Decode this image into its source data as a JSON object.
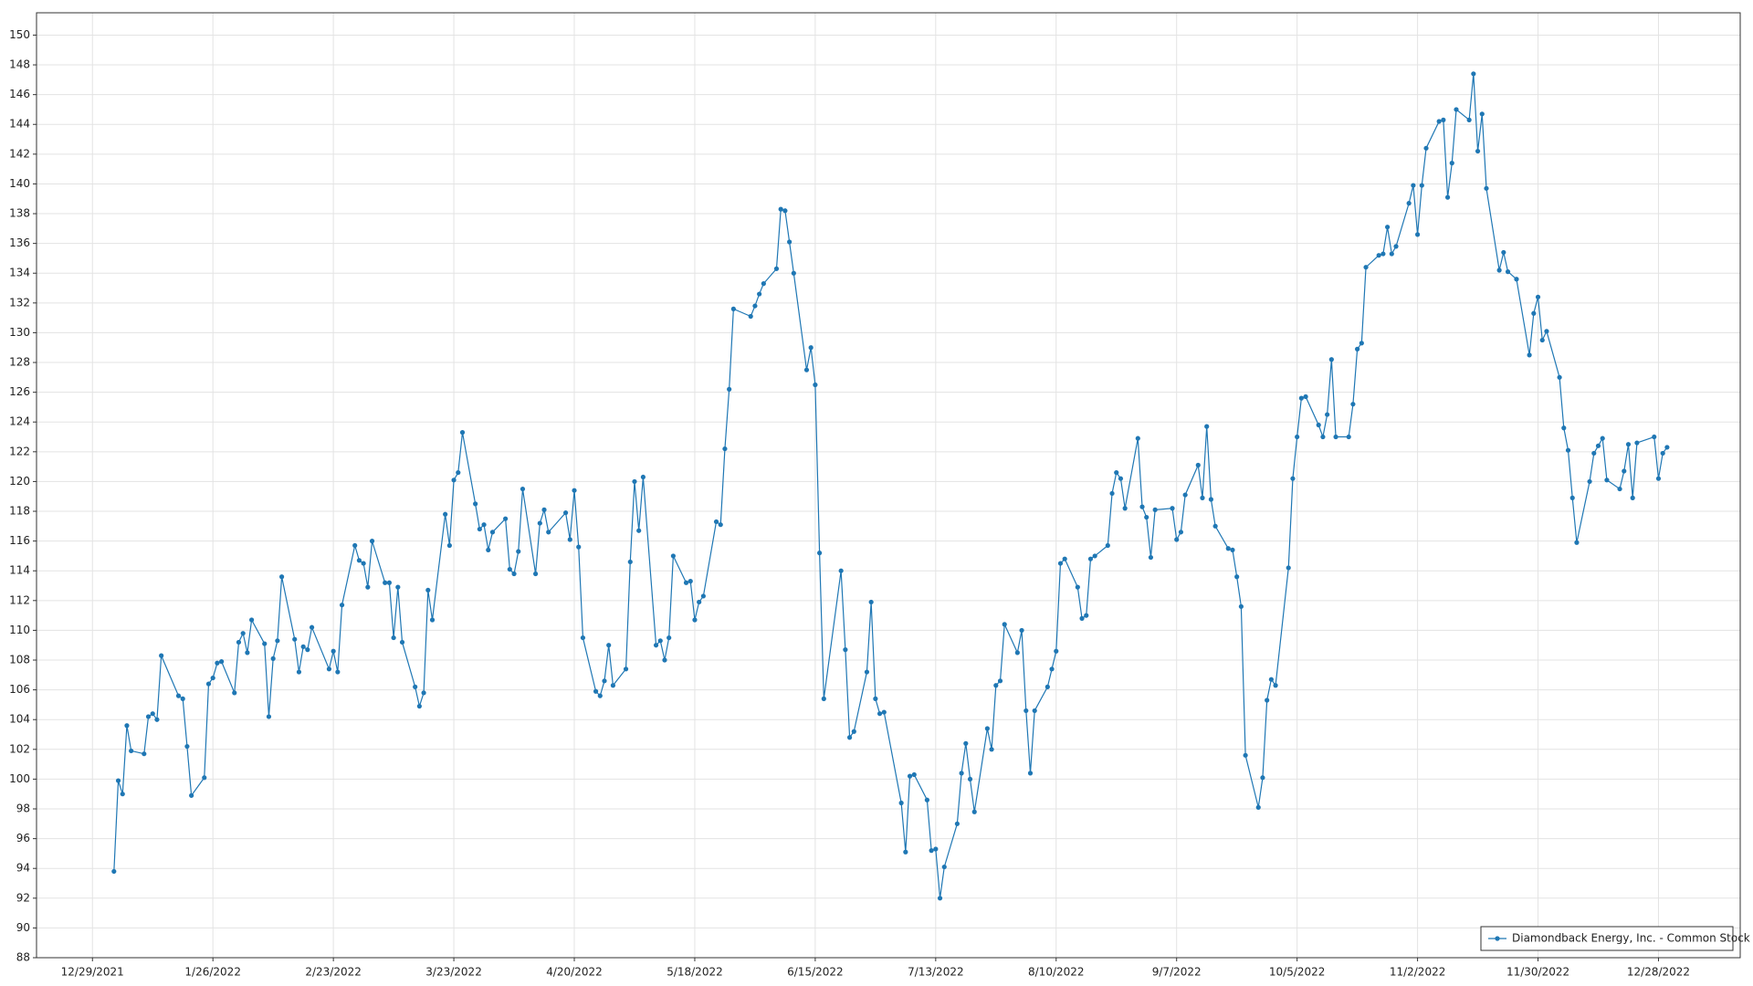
{
  "chart_data": {
    "type": "line",
    "grid": true,
    "markers": true,
    "legend": "lower right",
    "x": [
      "1/3/2022",
      "1/4/2022",
      "1/5/2022",
      "1/6/2022",
      "1/7/2022",
      "1/10/2022",
      "1/11/2022",
      "1/12/2022",
      "1/13/2022",
      "1/14/2022",
      "1/18/2022",
      "1/19/2022",
      "1/20/2022",
      "1/21/2022",
      "1/24/2022",
      "1/25/2022",
      "1/26/2022",
      "1/27/2022",
      "1/28/2022",
      "1/31/2022",
      "2/1/2022",
      "2/2/2022",
      "2/3/2022",
      "2/4/2022",
      "2/7/2022",
      "2/8/2022",
      "2/9/2022",
      "2/10/2022",
      "2/11/2022",
      "2/14/2022",
      "2/15/2022",
      "2/16/2022",
      "2/17/2022",
      "2/18/2022",
      "2/22/2022",
      "2/23/2022",
      "2/24/2022",
      "2/25/2022",
      "2/28/2022",
      "3/1/2022",
      "3/2/2022",
      "3/3/2022",
      "3/4/2022",
      "3/7/2022",
      "3/8/2022",
      "3/9/2022",
      "3/10/2022",
      "3/11/2022",
      "3/14/2022",
      "3/15/2022",
      "3/16/2022",
      "3/17/2022",
      "3/18/2022",
      "3/21/2022",
      "3/22/2022",
      "3/23/2022",
      "3/24/2022",
      "3/25/2022",
      "3/28/2022",
      "3/29/2022",
      "3/30/2022",
      "3/31/2022",
      "4/1/2022",
      "4/4/2022",
      "4/5/2022",
      "4/6/2022",
      "4/7/2022",
      "4/8/2022",
      "4/11/2022",
      "4/12/2022",
      "4/13/2022",
      "4/14/2022",
      "4/18/2022",
      "4/19/2022",
      "4/20/2022",
      "4/21/2022",
      "4/22/2022",
      "4/25/2022",
      "4/26/2022",
      "4/27/2022",
      "4/28/2022",
      "4/29/2022",
      "5/2/2022",
      "5/3/2022",
      "5/4/2022",
      "5/5/2022",
      "5/6/2022",
      "5/9/2022",
      "5/10/2022",
      "5/11/2022",
      "5/12/2022",
      "5/13/2022",
      "5/16/2022",
      "5/17/2022",
      "5/18/2022",
      "5/19/2022",
      "5/20/2022",
      "5/23/2022",
      "5/24/2022",
      "5/25/2022",
      "5/26/2022",
      "5/27/2022",
      "5/31/2022",
      "6/1/2022",
      "6/2/2022",
      "6/3/2022",
      "6/6/2022",
      "6/7/2022",
      "6/8/2022",
      "6/9/2022",
      "6/10/2022",
      "6/13/2022",
      "6/14/2022",
      "6/15/2022",
      "6/16/2022",
      "6/17/2022",
      "6/21/2022",
      "6/22/2022",
      "6/23/2022",
      "6/24/2022",
      "6/27/2022",
      "6/28/2022",
      "6/29/2022",
      "6/30/2022",
      "7/1/2022",
      "7/5/2022",
      "7/6/2022",
      "7/7/2022",
      "7/8/2022",
      "7/11/2022",
      "7/12/2022",
      "7/13/2022",
      "7/14/2022",
      "7/15/2022",
      "7/18/2022",
      "7/19/2022",
      "7/20/2022",
      "7/21/2022",
      "7/22/2022",
      "7/25/2022",
      "7/26/2022",
      "7/27/2022",
      "7/28/2022",
      "7/29/2022",
      "8/1/2022",
      "8/2/2022",
      "8/3/2022",
      "8/4/2022",
      "8/5/2022",
      "8/8/2022",
      "8/9/2022",
      "8/10/2022",
      "8/11/2022",
      "8/12/2022",
      "8/15/2022",
      "8/16/2022",
      "8/17/2022",
      "8/18/2022",
      "8/19/2022",
      "8/22/2022",
      "8/23/2022",
      "8/24/2022",
      "8/25/2022",
      "8/26/2022",
      "8/29/2022",
      "8/30/2022",
      "8/31/2022",
      "9/1/2022",
      "9/2/2022",
      "9/6/2022",
      "9/7/2022",
      "9/8/2022",
      "9/9/2022",
      "9/12/2022",
      "9/13/2022",
      "9/14/2022",
      "9/15/2022",
      "9/16/2022",
      "9/19/2022",
      "9/20/2022",
      "9/21/2022",
      "9/22/2022",
      "9/23/2022",
      "9/26/2022",
      "9/27/2022",
      "9/28/2022",
      "9/29/2022",
      "9/30/2022",
      "10/3/2022",
      "10/4/2022",
      "10/5/2022",
      "10/6/2022",
      "10/7/2022",
      "10/10/2022",
      "10/11/2022",
      "10/12/2022",
      "10/13/2022",
      "10/14/2022",
      "10/17/2022",
      "10/18/2022",
      "10/19/2022",
      "10/20/2022",
      "10/21/2022",
      "10/24/2022",
      "10/25/2022",
      "10/26/2022",
      "10/27/2022",
      "10/28/2022",
      "10/31/2022",
      "11/1/2022",
      "11/2/2022",
      "11/3/2022",
      "11/4/2022",
      "11/7/2022",
      "11/8/2022",
      "11/9/2022",
      "11/10/2022",
      "11/11/2022",
      "11/14/2022",
      "11/15/2022",
      "11/16/2022",
      "11/17/2022",
      "11/18/2022",
      "11/21/2022",
      "11/22/2022",
      "11/23/2022",
      "11/25/2022",
      "11/28/2022",
      "11/29/2022",
      "11/30/2022",
      "12/1/2022",
      "12/2/2022",
      "12/5/2022",
      "12/6/2022",
      "12/7/2022",
      "12/8/2022",
      "12/9/2022",
      "12/12/2022",
      "12/13/2022",
      "12/14/2022",
      "12/15/2022",
      "12/16/2022",
      "12/19/2022",
      "12/20/2022",
      "12/21/2022",
      "12/22/2022",
      "12/23/2022",
      "12/27/2022",
      "12/28/2022",
      "12/29/2022",
      "12/30/2022"
    ],
    "series": [
      {
        "name": "Diamondback Energy, Inc. - Common Stock",
        "color": "#1f77b4",
        "values": [
          93.8,
          99.9,
          99.0,
          103.6,
          101.9,
          101.7,
          104.2,
          104.4,
          104.0,
          108.3,
          105.6,
          105.4,
          102.2,
          98.9,
          100.1,
          106.4,
          106.8,
          107.8,
          107.9,
          105.8,
          109.2,
          109.8,
          108.5,
          110.7,
          109.1,
          104.2,
          108.1,
          109.3,
          113.6,
          109.4,
          107.2,
          108.9,
          108.7,
          110.2,
          107.4,
          108.6,
          107.2,
          111.7,
          115.7,
          114.7,
          114.5,
          112.9,
          116.0,
          113.2,
          113.2,
          109.5,
          112.9,
          109.2,
          106.2,
          104.9,
          105.8,
          112.7,
          110.7,
          117.8,
          115.7,
          120.1,
          120.6,
          123.3,
          118.5,
          116.8,
          117.1,
          115.4,
          116.6,
          117.5,
          114.1,
          113.8,
          115.3,
          119.5,
          113.8,
          117.2,
          118.1,
          116.6,
          117.9,
          116.1,
          119.4,
          115.6,
          109.5,
          105.9,
          105.6,
          106.6,
          109.0,
          106.3,
          107.4,
          114.6,
          120.0,
          116.7,
          120.3,
          109.0,
          109.3,
          108.0,
          109.5,
          115.0,
          113.2,
          113.3,
          110.7,
          111.9,
          112.3,
          117.3,
          117.1,
          122.2,
          126.2,
          131.6,
          131.1,
          131.8,
          132.6,
          133.3,
          134.3,
          138.3,
          138.2,
          136.1,
          134.0,
          127.5,
          129.0,
          126.5,
          115.2,
          105.4,
          114.0,
          108.7,
          102.8,
          103.2,
          107.2,
          111.9,
          105.4,
          104.4,
          104.5,
          98.4,
          95.1,
          100.2,
          100.3,
          98.6,
          95.2,
          95.3,
          92.0,
          94.1,
          97.0,
          100.4,
          102.4,
          100.0,
          97.8,
          103.4,
          102.0,
          106.3,
          106.6,
          110.4,
          108.5,
          110.0,
          104.6,
          100.4,
          104.6,
          106.2,
          107.4,
          108.6,
          114.5,
          114.8,
          112.9,
          110.8,
          111.0,
          114.8,
          115.0,
          115.7,
          119.2,
          120.6,
          120.2,
          118.2,
          122.9,
          118.3,
          117.6,
          114.9,
          118.1,
          118.2,
          116.1,
          116.6,
          119.1,
          121.1,
          118.9,
          123.7,
          118.8,
          117.0,
          115.5,
          115.4,
          113.6,
          111.6,
          101.6,
          98.1,
          100.1,
          105.3,
          106.7,
          106.3,
          114.2,
          120.2,
          123.0,
          125.6,
          125.7,
          123.8,
          123.0,
          124.5,
          128.2,
          123.0,
          123.0,
          125.2,
          128.9,
          129.3,
          134.4,
          135.2,
          135.3,
          137.1,
          135.3,
          135.8,
          138.7,
          139.9,
          136.6,
          139.9,
          142.4,
          144.2,
          144.3,
          139.1,
          141.4,
          145.0,
          144.3,
          147.4,
          142.2,
          144.7,
          139.7,
          134.2,
          135.4,
          134.1,
          133.6,
          128.5,
          131.3,
          132.4,
          129.5,
          130.1,
          127.0,
          123.6,
          122.1,
          118.9,
          115.9,
          120.0,
          121.9,
          122.4,
          122.9,
          120.1,
          119.5,
          120.7,
          122.5,
          118.9,
          122.6,
          123.0,
          120.2,
          121.9,
          122.3
        ]
      }
    ],
    "xlim": [
      "12/16/2021",
      "1/16/2023"
    ],
    "xticks": [
      "12/29/2021",
      "1/26/2022",
      "2/23/2022",
      "3/23/2022",
      "4/20/2022",
      "5/18/2022",
      "6/15/2022",
      "7/13/2022",
      "8/10/2022",
      "9/7/2022",
      "10/5/2022",
      "11/2/2022",
      "11/30/2022",
      "12/28/2022"
    ],
    "ylim": [
      88,
      151.5
    ],
    "yticks": [
      88,
      90,
      92,
      94,
      96,
      98,
      100,
      102,
      104,
      106,
      108,
      110,
      112,
      114,
      116,
      118,
      120,
      122,
      124,
      126,
      128,
      130,
      132,
      134,
      136,
      138,
      140,
      142,
      144,
      146,
      148,
      150
    ]
  }
}
